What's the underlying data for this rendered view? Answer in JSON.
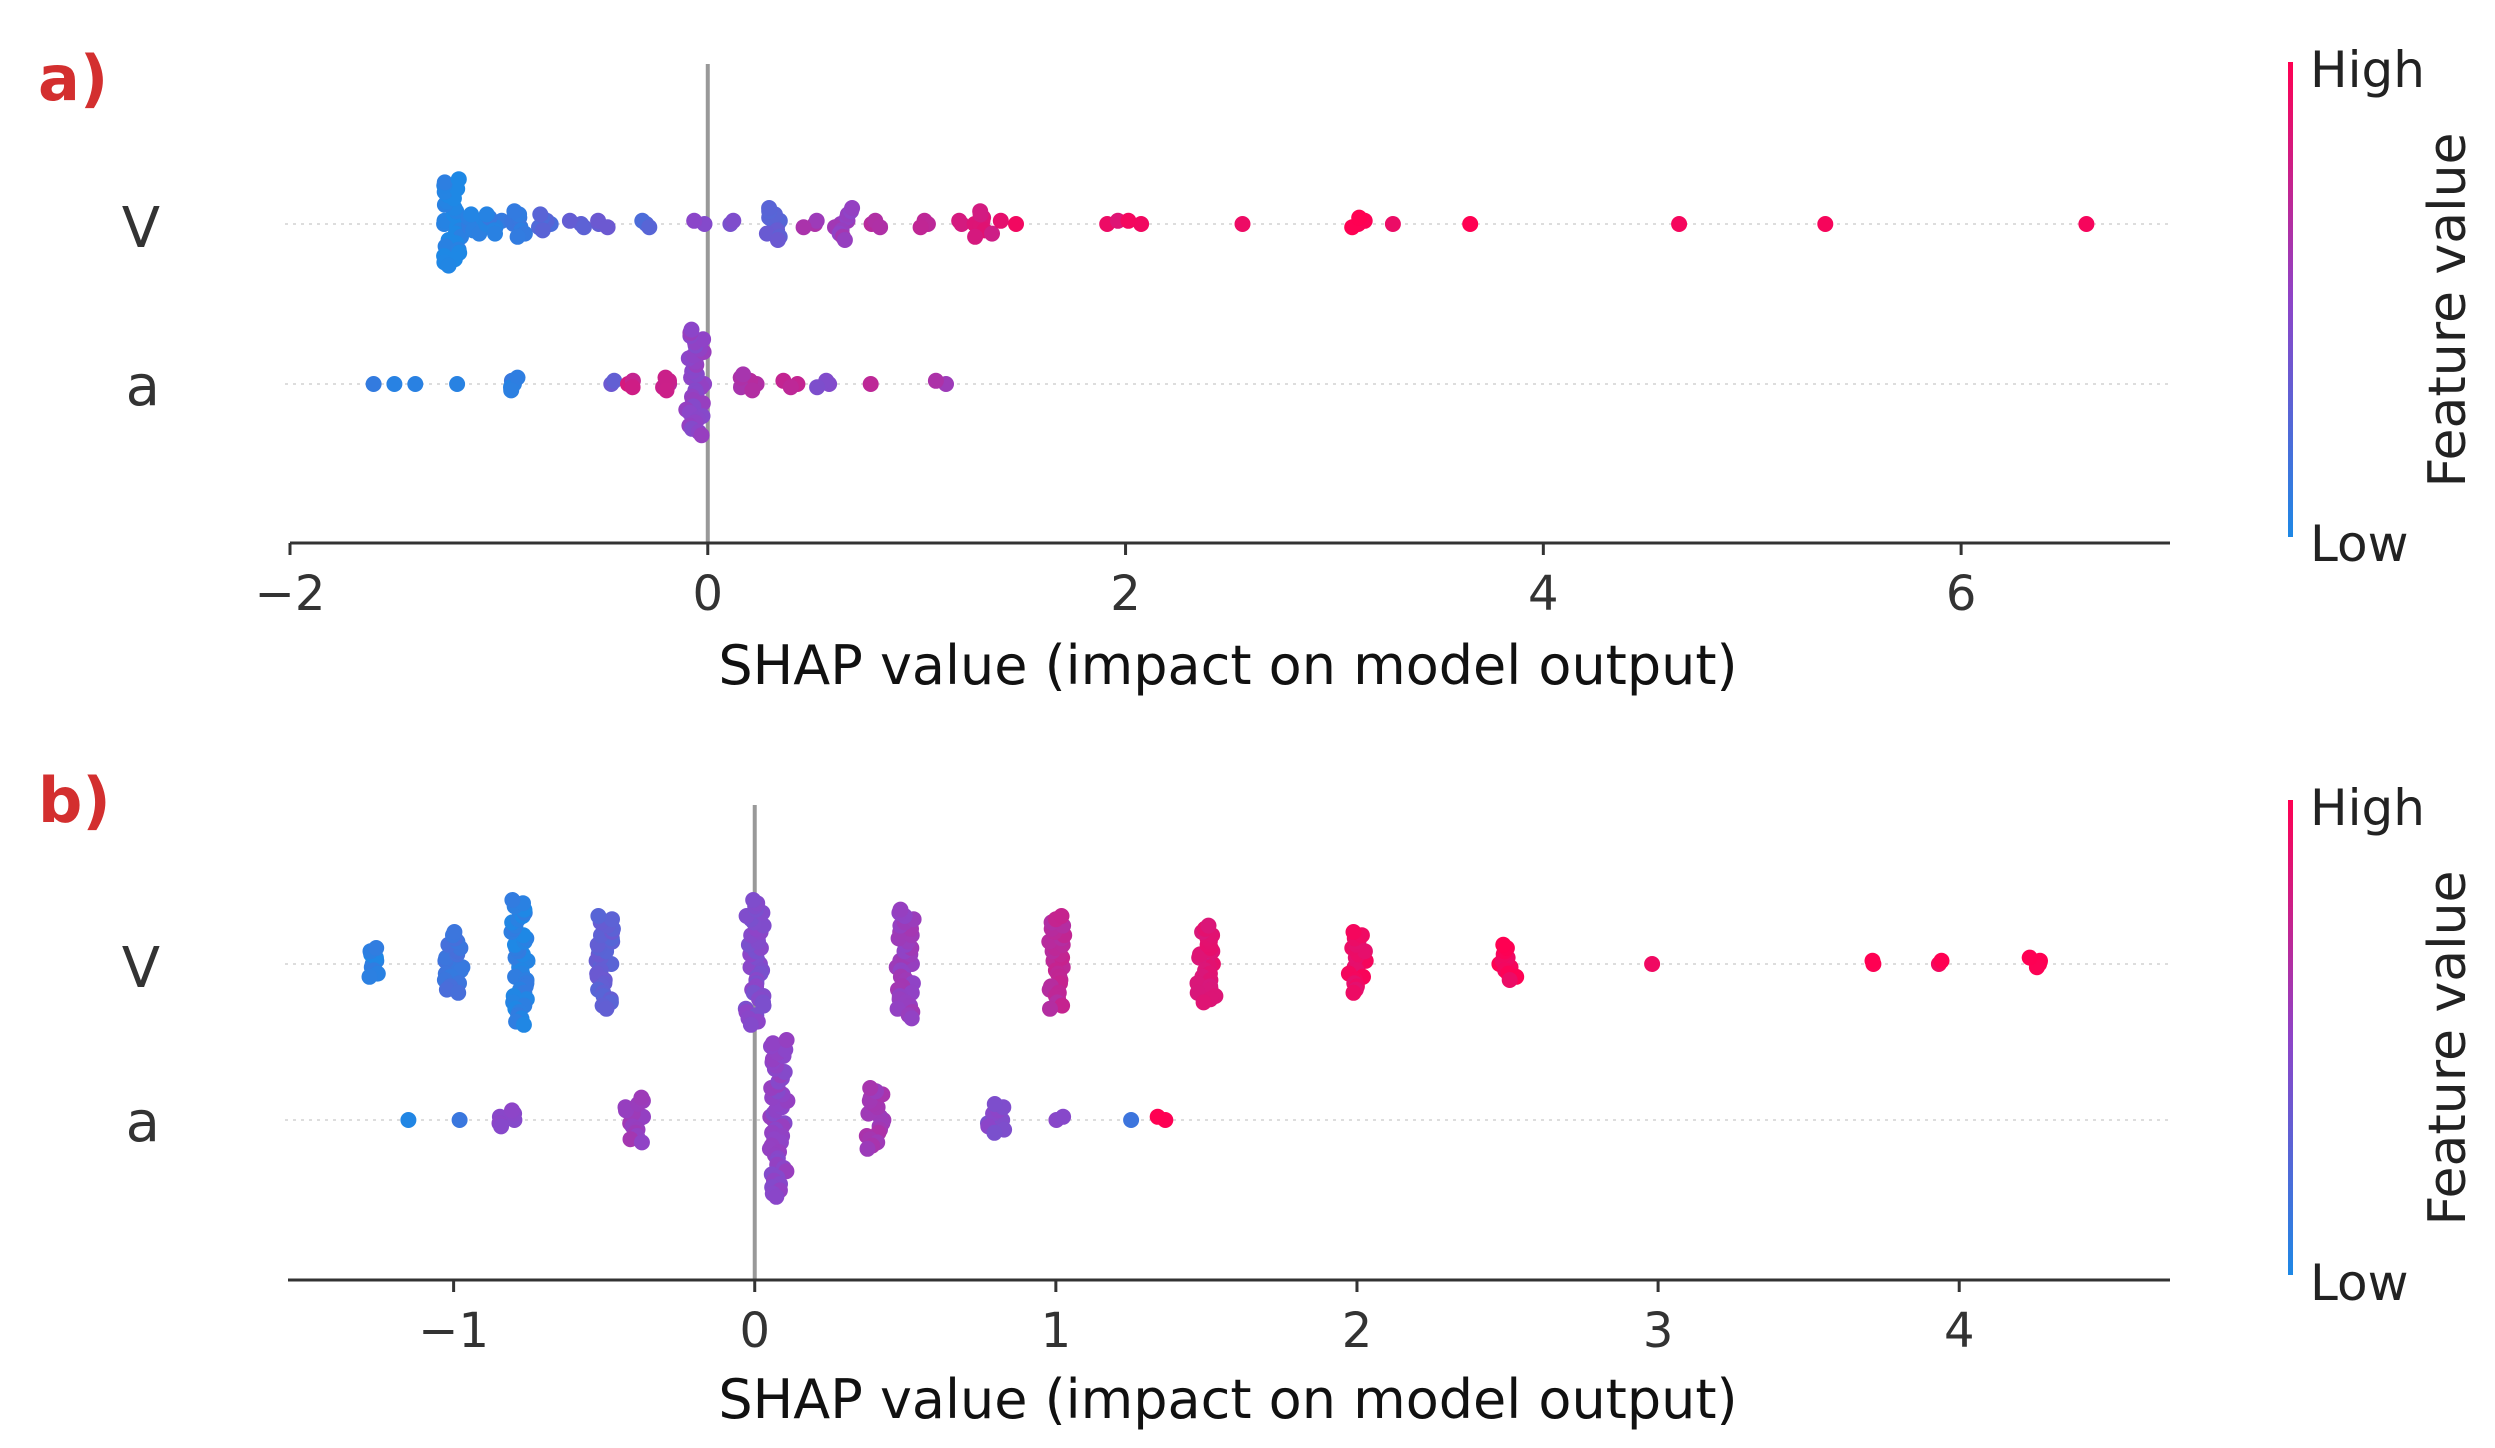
{
  "colors": {
    "low": "#1E88E5",
    "high": "#FF0052",
    "zero_line": "#999999",
    "grid": "#cccccc",
    "axis": "#333333",
    "panel_label": "#d32f2f"
  },
  "chart_data": [
    {
      "type": "scatter",
      "subtype": "shap_beeswarm",
      "panel_label": "a)",
      "xlabel": "SHAP value (impact on model output)",
      "xlim": [
        -2,
        7
      ],
      "xticks": [
        -2,
        0,
        2,
        4,
        6
      ],
      "xtick_labels": [
        "−2",
        "0",
        "2",
        "4",
        "6"
      ],
      "features": [
        "V",
        "a"
      ],
      "colorbar": {
        "title": "Feature value",
        "high_label": "High",
        "low_label": "Low"
      },
      "series": [
        {
          "name": "V",
          "points": [
            {
              "shap": -1.22,
              "feature_value": 0.02,
              "count": 28
            },
            {
              "shap": -1.12,
              "feature_value": 0.05,
              "count": 7
            },
            {
              "shap": -1.02,
              "feature_value": 0.07,
              "count": 7
            },
            {
              "shap": -0.9,
              "feature_value": 0.12,
              "count": 9
            },
            {
              "shap": -0.78,
              "feature_value": 0.22,
              "count": 6
            },
            {
              "shap": -0.62,
              "feature_value": 0.28,
              "count": 3
            },
            {
              "shap": -0.5,
              "feature_value": 0.35,
              "count": 3
            },
            {
              "shap": -0.3,
              "feature_value": 0.25,
              "count": 3
            },
            {
              "shap": -0.04,
              "feature_value": 0.45,
              "count": 2
            },
            {
              "shap": 0.15,
              "feature_value": 0.4,
              "count": 2
            },
            {
              "shap": 0.32,
              "feature_value": 0.3,
              "count": 11
            },
            {
              "shap": 0.5,
              "feature_value": 0.6,
              "count": 3
            },
            {
              "shap": 0.65,
              "feature_value": 0.55,
              "count": 11
            },
            {
              "shap": 0.8,
              "feature_value": 0.65,
              "count": 3
            },
            {
              "shap": 1.02,
              "feature_value": 0.72,
              "count": 3
            },
            {
              "shap": 1.2,
              "feature_value": 0.8,
              "count": 2
            },
            {
              "shap": 1.32,
              "feature_value": 0.82,
              "count": 9
            },
            {
              "shap": 1.44,
              "feature_value": 0.9,
              "count": 2
            },
            {
              "shap": 1.95,
              "feature_value": 0.88,
              "count": 2
            },
            {
              "shap": 2.05,
              "feature_value": 0.92,
              "count": 2
            },
            {
              "shap": 2.56,
              "feature_value": 0.95,
              "count": 1
            },
            {
              "shap": 3.12,
              "feature_value": 0.97,
              "count": 4
            },
            {
              "shap": 3.28,
              "feature_value": 0.96,
              "count": 1
            },
            {
              "shap": 3.65,
              "feature_value": 0.98,
              "count": 1
            },
            {
              "shap": 4.65,
              "feature_value": 0.99,
              "count": 1
            },
            {
              "shap": 5.35,
              "feature_value": 0.99,
              "count": 1
            },
            {
              "shap": 6.6,
              "feature_value": 1.0,
              "count": 1
            }
          ]
        },
        {
          "name": "a",
          "points": [
            {
              "shap": -1.6,
              "feature_value": 0.05,
              "count": 1
            },
            {
              "shap": -1.5,
              "feature_value": 0.05,
              "count": 1
            },
            {
              "shap": -1.4,
              "feature_value": 0.05,
              "count": 1
            },
            {
              "shap": -1.2,
              "feature_value": 0.05,
              "count": 1
            },
            {
              "shap": -0.9,
              "feature_value": 0.08,
              "count": 5
            },
            {
              "shap": -0.48,
              "feature_value": 0.3,
              "count": 2
            },
            {
              "shap": -0.38,
              "feature_value": 0.78,
              "count": 3
            },
            {
              "shap": -0.22,
              "feature_value": 0.72,
              "count": 5
            },
            {
              "shap": -0.06,
              "feature_value": 0.5,
              "count": 34
            },
            {
              "shap": 0.2,
              "feature_value": 0.65,
              "count": 6
            },
            {
              "shap": 0.4,
              "feature_value": 0.7,
              "count": 3
            },
            {
              "shap": 0.55,
              "feature_value": 0.4,
              "count": 3
            },
            {
              "shap": 0.78,
              "feature_value": 0.75,
              "count": 1
            },
            {
              "shap": 1.12,
              "feature_value": 0.6,
              "count": 2
            }
          ]
        }
      ]
    },
    {
      "type": "scatter",
      "subtype": "shap_beeswarm",
      "panel_label": "b)",
      "xlabel": "SHAP value (impact on model output)",
      "xlim": [
        -1.55,
        4.7
      ],
      "xticks": [
        -1,
        0,
        1,
        2,
        3,
        4
      ],
      "xtick_labels": [
        "−1",
        "0",
        "1",
        "2",
        "3",
        "4"
      ],
      "features": [
        "V",
        "a"
      ],
      "colorbar": {
        "title": "Feature value",
        "high_label": "High",
        "low_label": "Low"
      },
      "series": [
        {
          "name": "V",
          "points": [
            {
              "shap": -1.25,
              "feature_value": 0.05,
              "count": 10
            },
            {
              "shap": -1.0,
              "feature_value": 0.15,
              "count": 20
            },
            {
              "shap": -0.78,
              "feature_value": 0.05,
              "count": 40
            },
            {
              "shap": -0.5,
              "feature_value": 0.3,
              "count": 30
            },
            {
              "shap": 0.0,
              "feature_value": 0.45,
              "count": 40
            },
            {
              "shap": 0.5,
              "feature_value": 0.55,
              "count": 35
            },
            {
              "shap": 1.0,
              "feature_value": 0.7,
              "count": 30
            },
            {
              "shap": 1.5,
              "feature_value": 0.85,
              "count": 25
            },
            {
              "shap": 2.0,
              "feature_value": 0.92,
              "count": 20
            },
            {
              "shap": 2.5,
              "feature_value": 0.96,
              "count": 12
            },
            {
              "shap": 2.98,
              "feature_value": 0.98,
              "count": 1
            },
            {
              "shap": 3.73,
              "feature_value": 0.99,
              "count": 2
            },
            {
              "shap": 3.95,
              "feature_value": 0.99,
              "count": 2
            },
            {
              "shap": 4.25,
              "feature_value": 1.0,
              "count": 4
            }
          ]
        },
        {
          "name": "a",
          "points": [
            {
              "shap": -1.15,
              "feature_value": 0.05,
              "count": 1
            },
            {
              "shap": -0.98,
              "feature_value": 0.1,
              "count": 1
            },
            {
              "shap": -0.82,
              "feature_value": 0.5,
              "count": 6
            },
            {
              "shap": -0.4,
              "feature_value": 0.55,
              "count": 15
            },
            {
              "shap": 0.08,
              "feature_value": 0.5,
              "count": 50
            },
            {
              "shap": 0.4,
              "feature_value": 0.6,
              "count": 20
            },
            {
              "shap": 0.8,
              "feature_value": 0.45,
              "count": 10
            },
            {
              "shap": 1.0,
              "feature_value": 0.5,
              "count": 2
            },
            {
              "shap": 1.25,
              "feature_value": 0.1,
              "count": 1
            },
            {
              "shap": 1.36,
              "feature_value": 1.0,
              "count": 2
            }
          ]
        }
      ]
    }
  ]
}
